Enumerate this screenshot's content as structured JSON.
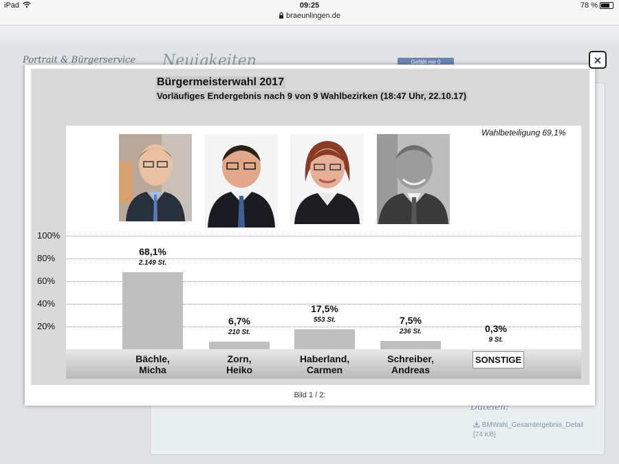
{
  "statusbar": {
    "device": "iPad",
    "time": "09:25",
    "url": "braeunlingen.de",
    "battery": "78 %"
  },
  "background": {
    "sidebar_title": "Portrait & Bürgerservice",
    "heading": "Neuigkeiten",
    "like_button": "Gefällt mir 0",
    "files_title": "Dateien:",
    "file_name": "BMWahl_Gesamtergebnis_Detail",
    "file_size": "[74 KB]"
  },
  "lightbox": {
    "close_label": "×",
    "caption": "Bild 1 / 2:",
    "icons": [
      "close-icon",
      "lock-icon",
      "wifi-icon",
      "download-icon"
    ]
  },
  "chart_data": {
    "type": "bar",
    "title": "Bürgermeisterwahl 2017",
    "subtitle": "Vorläufiges Endergebnis nach 9 von 9 Wahlbezirken (18:47 Uhr, 22.10.17)",
    "annotation": "Wahlbeteiligung 69,1%",
    "y_ticks": [
      "100%",
      "80%",
      "60%",
      "40%",
      "20%"
    ],
    "ylim": [
      0,
      100
    ],
    "grid": true,
    "categories": [
      {
        "line1": "Bächle,",
        "line2": "Micha"
      },
      {
        "line1": "Zorn,",
        "line2": "Heiko"
      },
      {
        "line1": "Haberland,",
        "line2": "Carmen"
      },
      {
        "line1": "Schreiber,",
        "line2": "Andreas"
      },
      {
        "line1": "SONSTIGE",
        "line2": ""
      }
    ],
    "values": [
      68.1,
      6.7,
      17.5,
      7.5,
      0.3
    ],
    "value_labels": [
      "68,1%",
      "6,7%",
      "17,5%",
      "7,5%",
      "0,3%"
    ],
    "vote_labels": [
      "2.149 St.",
      "210 St.",
      "553 St.",
      "236 St.",
      "9 St."
    ],
    "bar_color": "#bfbfbf"
  }
}
